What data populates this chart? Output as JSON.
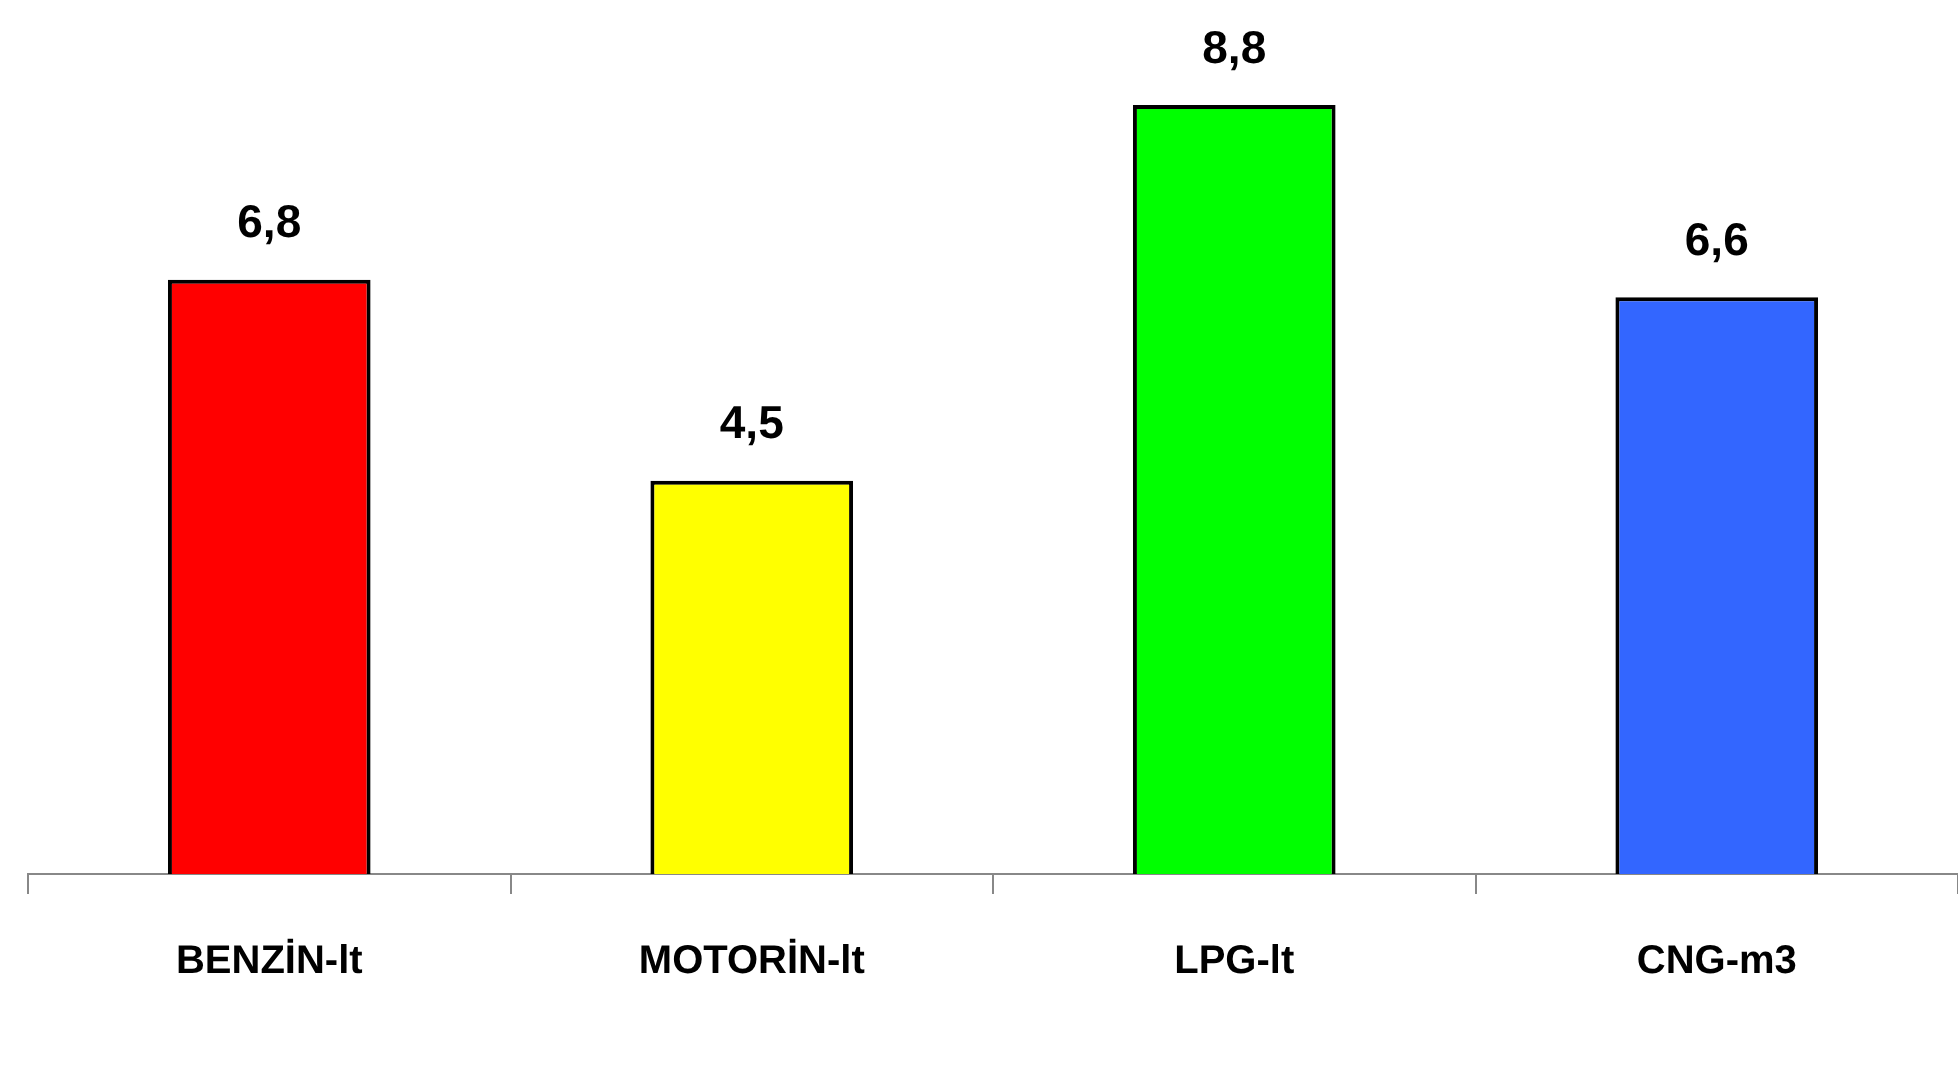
{
  "chart_data": {
    "type": "bar",
    "categories": [
      "BENZİN-lt",
      "MOTORİN-lt",
      "LPG-lt",
      "CNG-m3"
    ],
    "values": [
      6.8,
      4.5,
      8.8,
      6.6
    ],
    "colors": [
      "#ff0000",
      "#ffff00",
      "#00ff00",
      "#3366ff"
    ],
    "value_labels": [
      "6,8",
      "4,5",
      "8,8",
      "6,6"
    ],
    "grid": false,
    "legend": false
  }
}
